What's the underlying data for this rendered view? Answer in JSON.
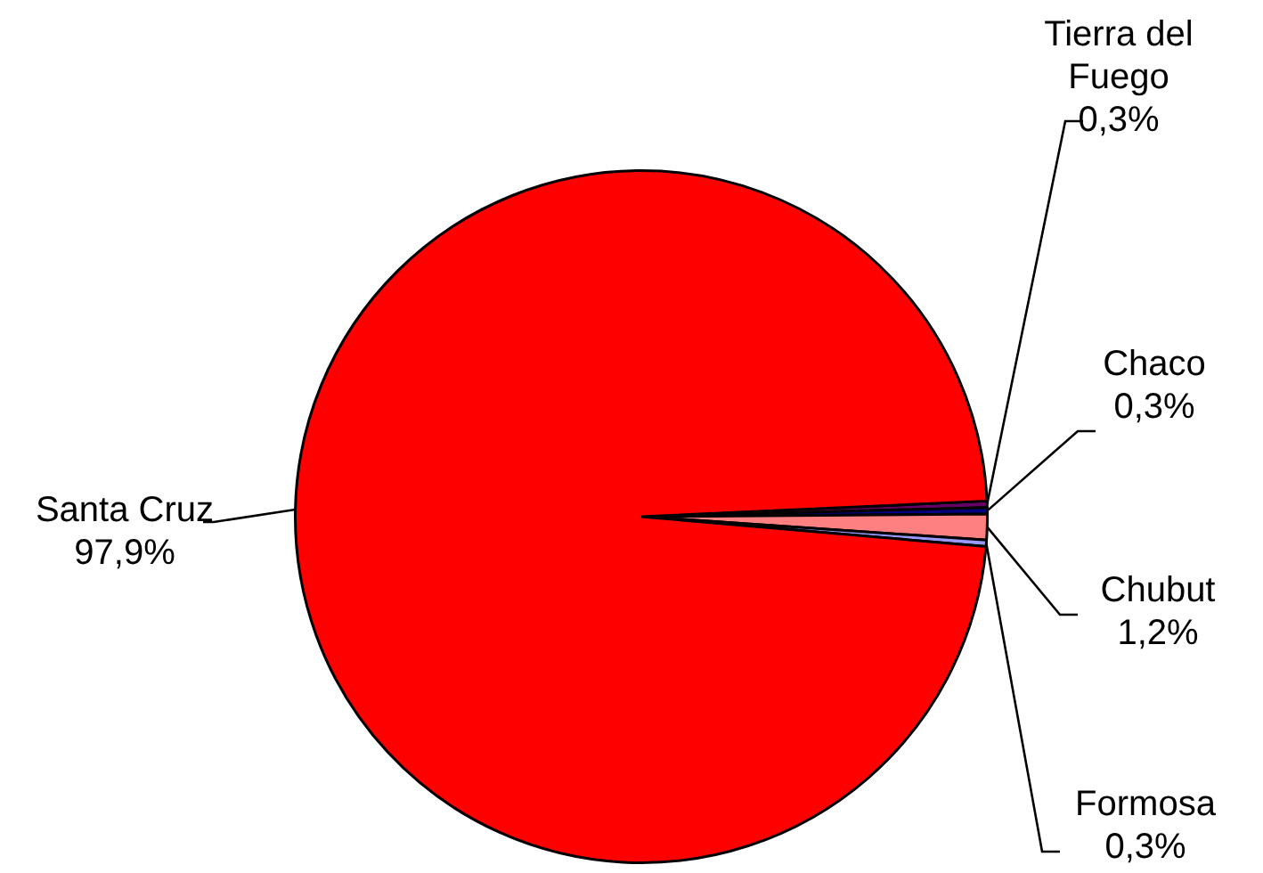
{
  "chart_data": {
    "type": "pie",
    "categories": [
      "Tierra del Fuego",
      "Chaco",
      "Chubut",
      "Formosa",
      "Santa Cruz"
    ],
    "values": [
      0.3,
      0.3,
      1.2,
      0.3,
      97.9
    ],
    "colors": [
      "#660066",
      "#000080",
      "#ff8080",
      "#9999ff",
      "#ff0000"
    ],
    "value_labels": [
      "0,3%",
      "0,3%",
      "1,2%",
      "0,3%",
      "97,9%"
    ],
    "legend": false
  }
}
